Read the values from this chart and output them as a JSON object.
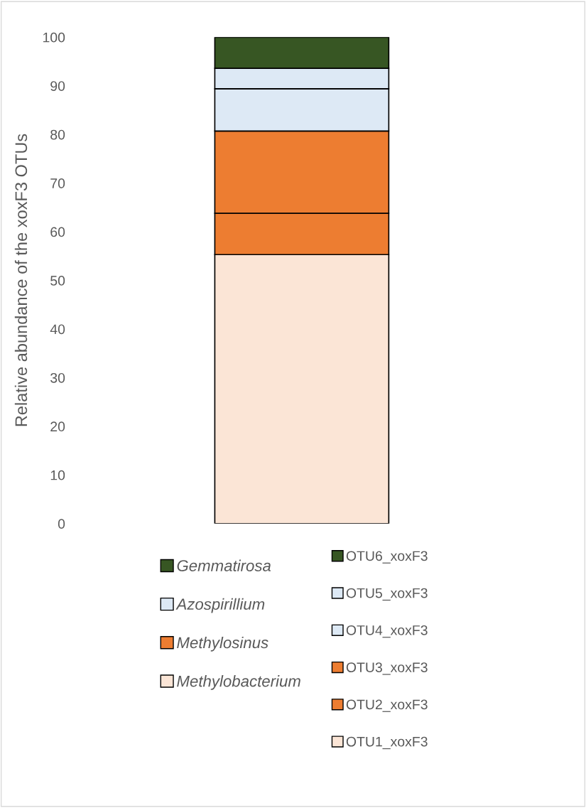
{
  "chart_data": {
    "type": "bar",
    "stacked": true,
    "categories": [
      null
    ],
    "ylabel": "Relative abundance of the xoxF3 OTUs",
    "ylim": [
      0,
      100
    ],
    "yticks": [
      0,
      10,
      20,
      30,
      40,
      50,
      60,
      70,
      80,
      90,
      100
    ],
    "grid": false,
    "legend": "bottom",
    "series": [
      {
        "name": "OTU1_xoxF3",
        "color": "#fbe5d6",
        "values": [
          55.3
        ]
      },
      {
        "name": "OTU2_xoxF3",
        "color": "#ed7d31",
        "values": [
          8.5
        ]
      },
      {
        "name": "OTU3_xoxF3",
        "color": "#ed7d31",
        "values": [
          16.9
        ]
      },
      {
        "name": "OTU4_xoxF3",
        "color": "#dde9f5",
        "values": [
          8.7
        ]
      },
      {
        "name": "OTU5_xoxF3",
        "color": "#dde9f5",
        "values": [
          4.2
        ]
      },
      {
        "name": "OTU6_xoxF3",
        "color": "#375623",
        "values": [
          6.4
        ]
      }
    ],
    "annotations": [
      "Gemmatirosa",
      "Azospirillium",
      "Methylosinus",
      "Methylobacterium"
    ]
  }
}
